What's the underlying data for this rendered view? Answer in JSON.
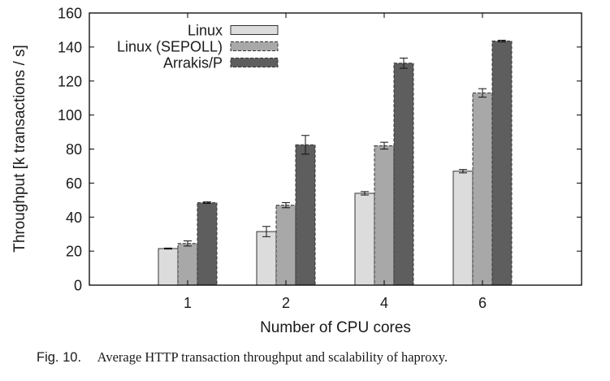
{
  "chart_data": {
    "type": "bar",
    "xlabel": "Number of CPU cores",
    "ylabel": "Throughput [k transactions / s]",
    "ylim": [
      0,
      160
    ],
    "yticks": [
      0,
      20,
      40,
      60,
      80,
      100,
      120,
      140,
      160
    ],
    "categories": [
      "1",
      "2",
      "4",
      "6"
    ],
    "legend_position": "top-left",
    "grid": false,
    "error_bars": true,
    "series": [
      {
        "name": "Linux",
        "color": "#dcdcdc",
        "dashed": false,
        "values": [
          21.5,
          31.5,
          54,
          67
        ],
        "errors": [
          0.3,
          3,
          1,
          1
        ]
      },
      {
        "name": "Linux (SEPOLL)",
        "color": "#a8a8a8",
        "dashed": true,
        "values": [
          24.5,
          47,
          82,
          113
        ],
        "errors": [
          1.5,
          1.5,
          2,
          2.5
        ]
      },
      {
        "name": "Arrakis/P",
        "color": "#5e5e5e",
        "dashed": true,
        "values": [
          48.5,
          82.5,
          130.5,
          143.5
        ],
        "errors": [
          0.5,
          5.5,
          3,
          0.5
        ]
      }
    ]
  },
  "caption": {
    "label": "Fig. 10.",
    "text": "Average HTTP transaction throughput and scalability of haproxy."
  }
}
